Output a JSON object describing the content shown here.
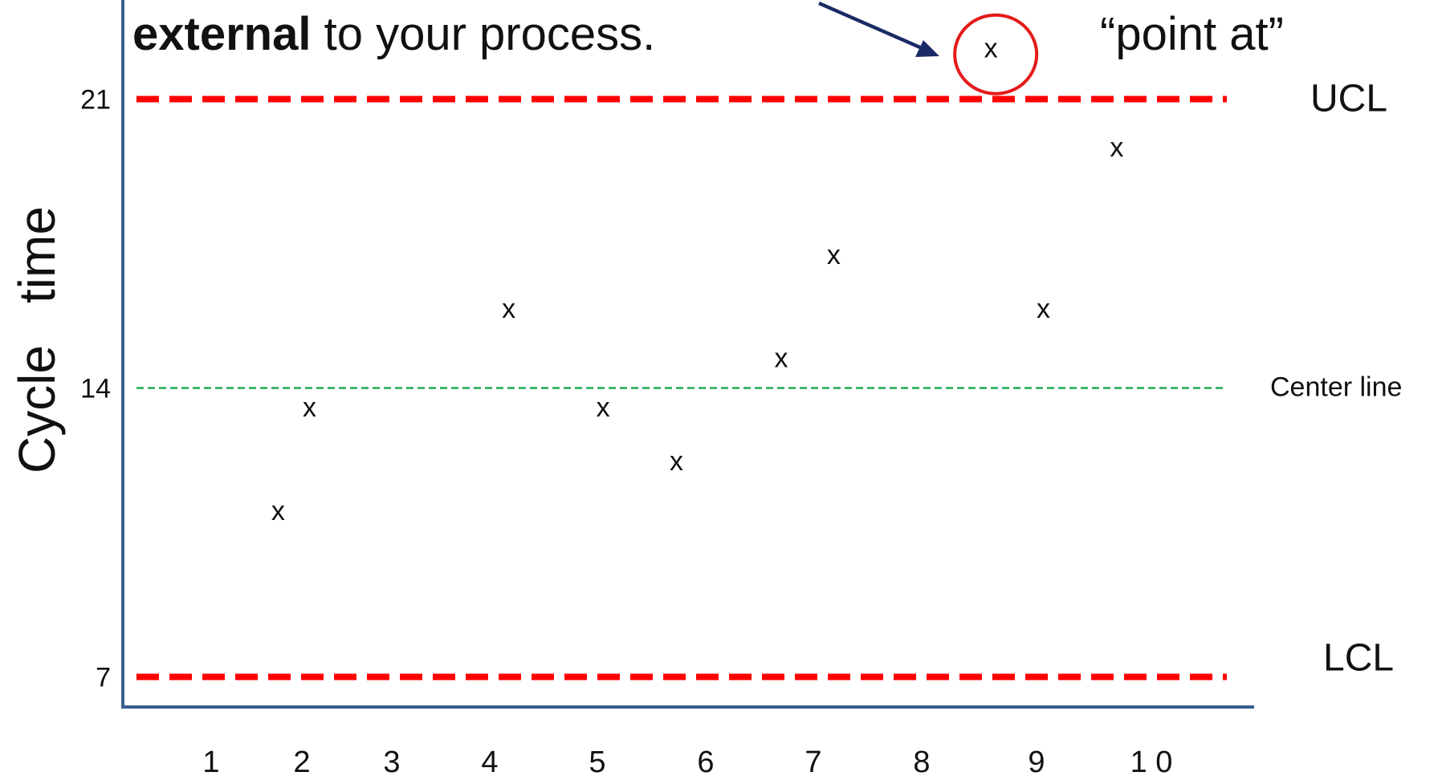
{
  "header": {
    "emphasis": "external",
    "rest": " to your process.",
    "point_at": "“point at”"
  },
  "axis": {
    "ylabel_word1": "Cycle",
    "ylabel_word2": "time"
  },
  "colors": {
    "control_limit": "#ff0000",
    "center_line": "#22aa55",
    "axis": "#3a5f8f",
    "arrow": "#1a2a66",
    "highlight": "#e41a1a"
  },
  "chart_data": {
    "type": "scatter",
    "title": "",
    "xlabel": "",
    "ylabel": "Cycle time",
    "x_ticks": [
      "1",
      "2",
      "3",
      "4",
      "5",
      "6",
      "7",
      "8",
      "9",
      "1 0"
    ],
    "y_ticks": [
      7,
      14,
      21
    ],
    "ylim": [
      4.6,
      23.4
    ],
    "marker_label": "x",
    "points": [
      {
        "x": 1.7,
        "y": 11.0
      },
      {
        "x": 2.0,
        "y": 13.5
      },
      {
        "x": 3.9,
        "y": 15.9
      },
      {
        "x": 4.8,
        "y": 13.5
      },
      {
        "x": 5.5,
        "y": 12.2
      },
      {
        "x": 6.5,
        "y": 14.7
      },
      {
        "x": 7.0,
        "y": 17.2
      },
      {
        "x": 8.5,
        "y": 22.2
      },
      {
        "x": 9.0,
        "y": 15.9
      },
      {
        "x": 9.7,
        "y": 19.8
      }
    ],
    "highlighted_point_index": 7,
    "lines": [
      {
        "name": "UCL",
        "y": 21,
        "style": "dashed-thick"
      },
      {
        "name": "Center line",
        "y": 14,
        "style": "dashed-thin"
      },
      {
        "name": "LCL",
        "y": 7,
        "style": "dashed-thick"
      }
    ],
    "grid": false,
    "legend": "none"
  }
}
